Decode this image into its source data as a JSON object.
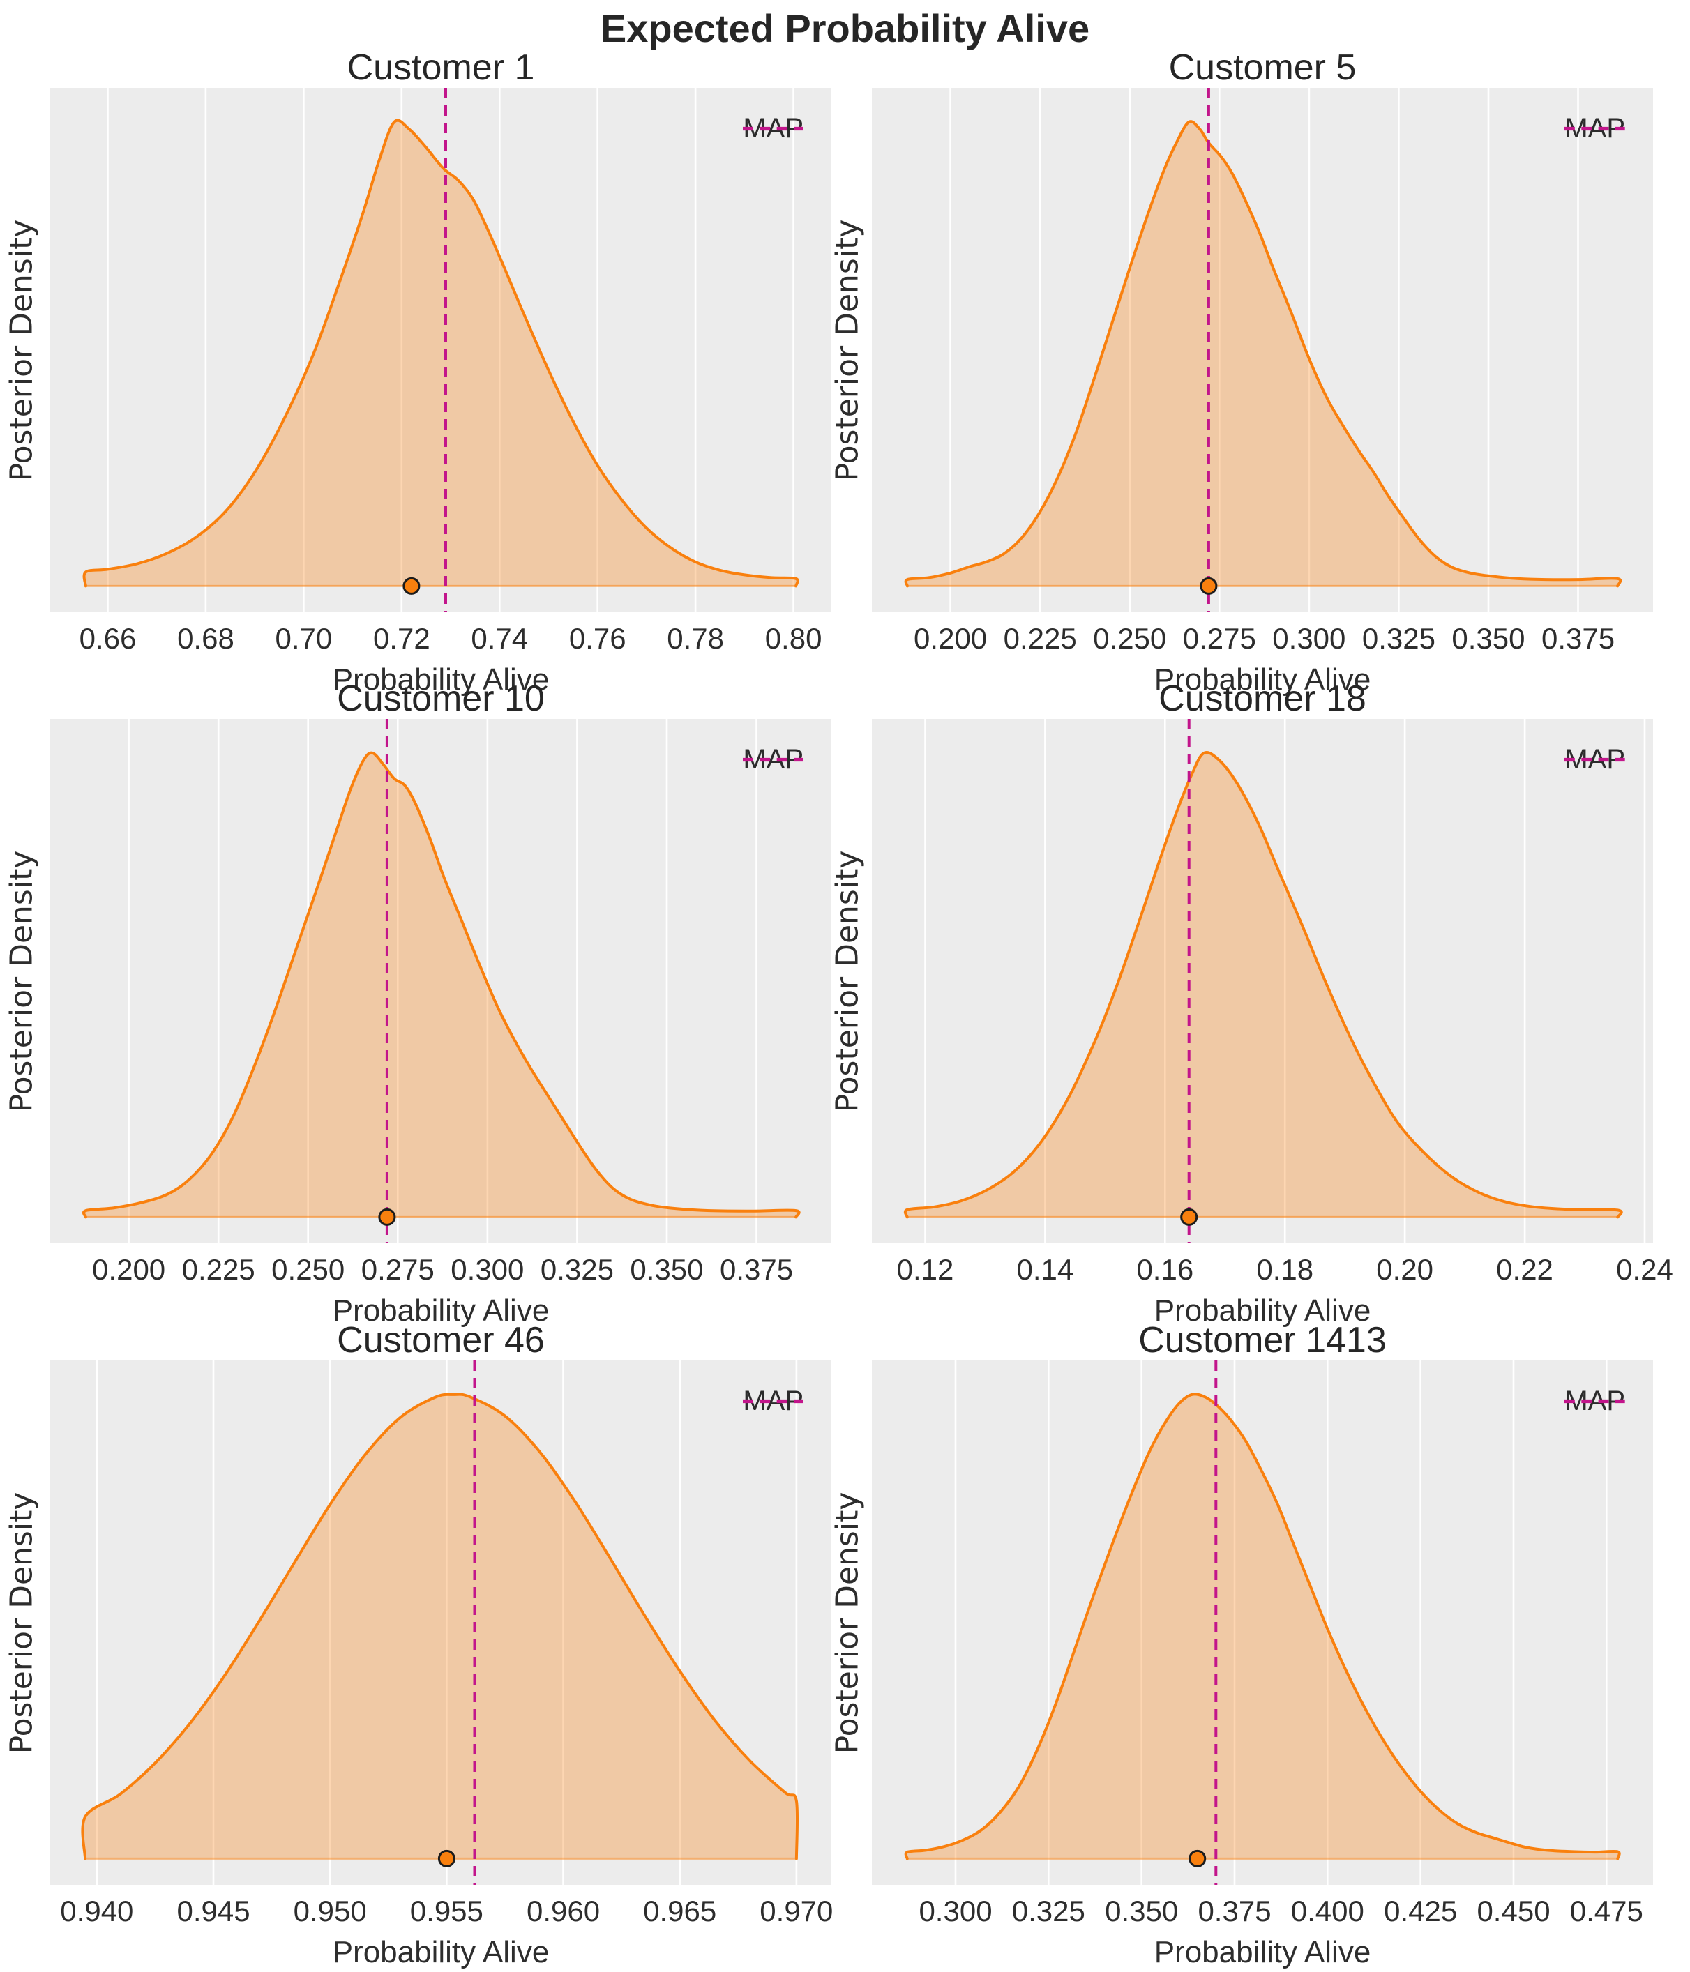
{
  "suptitle": "Expected Probability Alive",
  "xlabel": "Probability Alive",
  "ylabel": "Posterior Density",
  "legend_label": "MAP",
  "colors": {
    "curve": "#F9800E",
    "fill_opacity": 0.32,
    "map_line": "#C2158B",
    "bg": "#ECECEC",
    "grid": "#FFFFFF",
    "text": "#2D2D2D",
    "title": "#262626",
    "dot_edge": "#1C1C1C"
  },
  "chart_data": [
    {
      "type": "area",
      "title": "Customer 1",
      "xlabel": "Probability Alive",
      "ylabel": "Posterior Density",
      "xlim": [
        0.64825,
        0.80775
      ],
      "ticks": [
        0.66,
        0.68,
        0.7,
        0.72,
        0.74,
        0.76,
        0.78,
        0.8
      ],
      "tick_labels": [
        "0.66",
        "0.68",
        "0.70",
        "0.72",
        "0.74",
        "0.76",
        "0.78",
        "0.80"
      ],
      "map": 0.729,
      "rug": 0.722,
      "curve": [
        [
          0.6555,
          0.03
        ],
        [
          0.66,
          0.036
        ],
        [
          0.666,
          0.048
        ],
        [
          0.672,
          0.07
        ],
        [
          0.678,
          0.105
        ],
        [
          0.684,
          0.16
        ],
        [
          0.69,
          0.245
        ],
        [
          0.696,
          0.36
        ],
        [
          0.702,
          0.5
        ],
        [
          0.707,
          0.645
        ],
        [
          0.712,
          0.8
        ],
        [
          0.7155,
          0.92
        ],
        [
          0.7185,
          1.0
        ],
        [
          0.7215,
          0.985
        ],
        [
          0.725,
          0.945
        ],
        [
          0.7285,
          0.9
        ],
        [
          0.7315,
          0.875
        ],
        [
          0.7345,
          0.835
        ],
        [
          0.7375,
          0.77
        ],
        [
          0.741,
          0.685
        ],
        [
          0.745,
          0.585
        ],
        [
          0.75,
          0.465
        ],
        [
          0.755,
          0.355
        ],
        [
          0.76,
          0.26
        ],
        [
          0.765,
          0.185
        ],
        [
          0.77,
          0.125
        ],
        [
          0.775,
          0.082
        ],
        [
          0.78,
          0.052
        ],
        [
          0.785,
          0.034
        ],
        [
          0.79,
          0.024
        ],
        [
          0.7955,
          0.018
        ],
        [
          0.8005,
          0.016
        ]
      ]
    },
    {
      "type": "area",
      "title": "Customer 5",
      "xlabel": "Probability Alive",
      "ylabel": "Posterior Density",
      "xlim": [
        0.1781,
        0.3959
      ],
      "ticks": [
        0.2,
        0.225,
        0.25,
        0.275,
        0.3,
        0.325,
        0.35,
        0.375
      ],
      "tick_labels": [
        "0.200",
        "0.225",
        "0.250",
        "0.275",
        "0.300",
        "0.325",
        "0.350",
        "0.375"
      ],
      "map": 0.272,
      "rug": 0.272,
      "curve": [
        [
          0.188,
          0.014
        ],
        [
          0.194,
          0.018
        ],
        [
          0.2,
          0.028
        ],
        [
          0.2055,
          0.042
        ],
        [
          0.21,
          0.052
        ],
        [
          0.215,
          0.07
        ],
        [
          0.22,
          0.105
        ],
        [
          0.225,
          0.16
        ],
        [
          0.23,
          0.235
        ],
        [
          0.235,
          0.33
        ],
        [
          0.24,
          0.445
        ],
        [
          0.245,
          0.565
        ],
        [
          0.25,
          0.685
        ],
        [
          0.255,
          0.8
        ],
        [
          0.2595,
          0.895
        ],
        [
          0.263,
          0.955
        ],
        [
          0.2665,
          1.0
        ],
        [
          0.2695,
          0.985
        ],
        [
          0.272,
          0.955
        ],
        [
          0.2755,
          0.925
        ],
        [
          0.2785,
          0.89
        ],
        [
          0.282,
          0.835
        ],
        [
          0.286,
          0.765
        ],
        [
          0.29,
          0.685
        ],
        [
          0.295,
          0.59
        ],
        [
          0.3,
          0.49
        ],
        [
          0.305,
          0.405
        ],
        [
          0.3095,
          0.345
        ],
        [
          0.314,
          0.29
        ],
        [
          0.318,
          0.245
        ],
        [
          0.322,
          0.195
        ],
        [
          0.3265,
          0.145
        ],
        [
          0.331,
          0.098
        ],
        [
          0.3355,
          0.062
        ],
        [
          0.34,
          0.04
        ],
        [
          0.345,
          0.028
        ],
        [
          0.351,
          0.021
        ],
        [
          0.358,
          0.016
        ],
        [
          0.366,
          0.014
        ],
        [
          0.375,
          0.014
        ],
        [
          0.386,
          0.016
        ]
      ]
    },
    {
      "type": "area",
      "title": "Customer 10",
      "xlabel": "Probability Alive",
      "ylabel": "Posterior Density",
      "xlim": [
        0.1781,
        0.3959
      ],
      "ticks": [
        0.2,
        0.225,
        0.25,
        0.275,
        0.3,
        0.325,
        0.35,
        0.375
      ],
      "tick_labels": [
        "0.200",
        "0.225",
        "0.250",
        "0.275",
        "0.300",
        "0.325",
        "0.350",
        "0.375"
      ],
      "map": 0.272,
      "rug": 0.272,
      "curve": [
        [
          0.188,
          0.014
        ],
        [
          0.196,
          0.02
        ],
        [
          0.204,
          0.032
        ],
        [
          0.211,
          0.05
        ],
        [
          0.217,
          0.082
        ],
        [
          0.223,
          0.135
        ],
        [
          0.229,
          0.215
        ],
        [
          0.235,
          0.325
        ],
        [
          0.241,
          0.45
        ],
        [
          0.247,
          0.585
        ],
        [
          0.253,
          0.72
        ],
        [
          0.258,
          0.835
        ],
        [
          0.262,
          0.925
        ],
        [
          0.2655,
          0.985
        ],
        [
          0.268,
          1.0
        ],
        [
          0.271,
          0.975
        ],
        [
          0.274,
          0.945
        ],
        [
          0.277,
          0.93
        ],
        [
          0.28,
          0.89
        ],
        [
          0.284,
          0.815
        ],
        [
          0.288,
          0.73
        ],
        [
          0.293,
          0.635
        ],
        [
          0.298,
          0.54
        ],
        [
          0.303,
          0.45
        ],
        [
          0.308,
          0.375
        ],
        [
          0.3125,
          0.315
        ],
        [
          0.317,
          0.26
        ],
        [
          0.3215,
          0.205
        ],
        [
          0.326,
          0.15
        ],
        [
          0.3305,
          0.1
        ],
        [
          0.335,
          0.062
        ],
        [
          0.34,
          0.038
        ],
        [
          0.346,
          0.025
        ],
        [
          0.353,
          0.018
        ],
        [
          0.362,
          0.014
        ],
        [
          0.374,
          0.013
        ],
        [
          0.386,
          0.014
        ]
      ]
    },
    {
      "type": "area",
      "title": "Customer 18",
      "xlabel": "Probability Alive",
      "ylabel": "Posterior Density",
      "xlim": [
        0.1111,
        0.2414
      ],
      "ticks": [
        0.12,
        0.14,
        0.16,
        0.18,
        0.2,
        0.22,
        0.24
      ],
      "tick_labels": [
        "0.12",
        "0.14",
        "0.16",
        "0.18",
        "0.20",
        "0.22",
        "0.24"
      ],
      "map": 0.164,
      "rug": 0.164,
      "curve": [
        [
          0.117,
          0.016
        ],
        [
          0.1215,
          0.022
        ],
        [
          0.126,
          0.035
        ],
        [
          0.1305,
          0.06
        ],
        [
          0.135,
          0.1
        ],
        [
          0.1395,
          0.165
        ],
        [
          0.144,
          0.26
        ],
        [
          0.1485,
          0.385
        ],
        [
          0.152,
          0.5
        ],
        [
          0.1555,
          0.63
        ],
        [
          0.159,
          0.765
        ],
        [
          0.162,
          0.875
        ],
        [
          0.1645,
          0.955
        ],
        [
          0.1665,
          1.0
        ],
        [
          0.169,
          0.985
        ],
        [
          0.172,
          0.935
        ],
        [
          0.1755,
          0.85
        ],
        [
          0.179,
          0.745
        ],
        [
          0.183,
          0.625
        ],
        [
          0.187,
          0.5
        ],
        [
          0.191,
          0.385
        ],
        [
          0.195,
          0.285
        ],
        [
          0.199,
          0.2
        ],
        [
          0.2035,
          0.135
        ],
        [
          0.208,
          0.085
        ],
        [
          0.2125,
          0.052
        ],
        [
          0.217,
          0.032
        ],
        [
          0.2215,
          0.022
        ],
        [
          0.227,
          0.017
        ],
        [
          0.2355,
          0.015
        ]
      ]
    },
    {
      "type": "area",
      "title": "Customer 46",
      "xlabel": "Probability Alive",
      "ylabel": "Posterior Density",
      "xlim": [
        0.938,
        0.9715
      ],
      "ticks": [
        0.94,
        0.945,
        0.95,
        0.955,
        0.96,
        0.965,
        0.97
      ],
      "tick_labels": [
        "0.940",
        "0.945",
        "0.950",
        "0.955",
        "0.960",
        "0.965",
        "0.970"
      ],
      "map": 0.9562,
      "rug": 0.955,
      "curve": [
        [
          0.9395,
          0.09
        ],
        [
          0.941,
          0.139
        ],
        [
          0.9425,
          0.206
        ],
        [
          0.944,
          0.292
        ],
        [
          0.9455,
          0.396
        ],
        [
          0.947,
          0.515
        ],
        [
          0.9485,
          0.64
        ],
        [
          0.95,
          0.763
        ],
        [
          0.9515,
          0.87
        ],
        [
          0.953,
          0.95
        ],
        [
          0.9545,
          0.994
        ],
        [
          0.9553,
          1.0
        ],
        [
          0.956,
          0.995
        ],
        [
          0.9575,
          0.954
        ],
        [
          0.959,
          0.876
        ],
        [
          0.9605,
          0.77
        ],
        [
          0.962,
          0.648
        ],
        [
          0.9635,
          0.523
        ],
        [
          0.965,
          0.404
        ],
        [
          0.9665,
          0.298
        ],
        [
          0.968,
          0.211
        ],
        [
          0.9695,
          0.143
        ],
        [
          0.97,
          0.124
        ]
      ]
    },
    {
      "type": "area",
      "title": "Customer 1413",
      "xlabel": "Probability Alive",
      "ylabel": "Posterior Density",
      "xlim": [
        0.2775,
        0.4875
      ],
      "ticks": [
        0.3,
        0.325,
        0.35,
        0.375,
        0.4,
        0.425,
        0.45,
        0.475
      ],
      "tick_labels": [
        "0.300",
        "0.325",
        "0.350",
        "0.375",
        "0.400",
        "0.425",
        "0.450",
        "0.475"
      ],
      "map": 0.37,
      "rug": 0.365,
      "curve": [
        [
          0.287,
          0.014
        ],
        [
          0.292,
          0.018
        ],
        [
          0.297,
          0.026
        ],
        [
          0.302,
          0.04
        ],
        [
          0.307,
          0.062
        ],
        [
          0.312,
          0.1
        ],
        [
          0.317,
          0.155
        ],
        [
          0.322,
          0.235
        ],
        [
          0.327,
          0.335
        ],
        [
          0.332,
          0.45
        ],
        [
          0.337,
          0.565
        ],
        [
          0.342,
          0.675
        ],
        [
          0.347,
          0.78
        ],
        [
          0.352,
          0.875
        ],
        [
          0.356,
          0.935
        ],
        [
          0.36,
          0.98
        ],
        [
          0.3635,
          1.0
        ],
        [
          0.367,
          0.995
        ],
        [
          0.3705,
          0.975
        ],
        [
          0.374,
          0.945
        ],
        [
          0.378,
          0.9
        ],
        [
          0.382,
          0.84
        ],
        [
          0.3865,
          0.765
        ],
        [
          0.391,
          0.675
        ],
        [
          0.3955,
          0.585
        ],
        [
          0.4,
          0.495
        ],
        [
          0.405,
          0.405
        ],
        [
          0.41,
          0.325
        ],
        [
          0.415,
          0.255
        ],
        [
          0.42,
          0.195
        ],
        [
          0.425,
          0.145
        ],
        [
          0.43,
          0.105
        ],
        [
          0.435,
          0.075
        ],
        [
          0.44,
          0.056
        ],
        [
          0.4445,
          0.045
        ],
        [
          0.449,
          0.034
        ],
        [
          0.4535,
          0.024
        ],
        [
          0.459,
          0.018
        ],
        [
          0.466,
          0.015
        ],
        [
          0.472,
          0.014
        ],
        [
          0.478,
          0.015
        ]
      ]
    }
  ]
}
